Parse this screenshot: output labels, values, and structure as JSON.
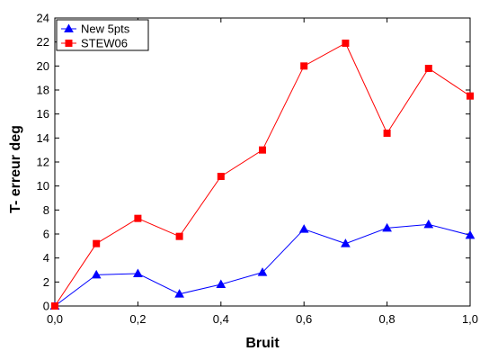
{
  "chart_data": {
    "type": "line",
    "xlabel": "Bruit",
    "ylabel": "T- erreur deg",
    "xlim": [
      0.0,
      1.0
    ],
    "ylim": [
      0,
      24
    ],
    "x_ticks": [
      "0,0",
      "0,2",
      "0,4",
      "0,6",
      "0,8",
      "1,0"
    ],
    "y_ticks": [
      "0",
      "2",
      "4",
      "6",
      "8",
      "10",
      "12",
      "14",
      "16",
      "18",
      "20",
      "22",
      "24"
    ],
    "grid": false,
    "legend_position": "top-left",
    "x": [
      0.0,
      0.1,
      0.2,
      0.3,
      0.4,
      0.5,
      0.6,
      0.7,
      0.8,
      0.9,
      1.0
    ],
    "series": [
      {
        "name": "New 5pts",
        "color": "#0000ff",
        "marker": "triangle",
        "values": [
          0.0,
          2.6,
          2.7,
          1.0,
          1.8,
          2.8,
          6.4,
          5.2,
          6.5,
          6.8,
          5.9
        ]
      },
      {
        "name": "STEW06",
        "color": "#ff0000",
        "marker": "square",
        "values": [
          0.0,
          5.2,
          7.3,
          5.8,
          10.8,
          13.0,
          20.0,
          21.9,
          14.4,
          19.8,
          17.5
        ]
      }
    ]
  }
}
